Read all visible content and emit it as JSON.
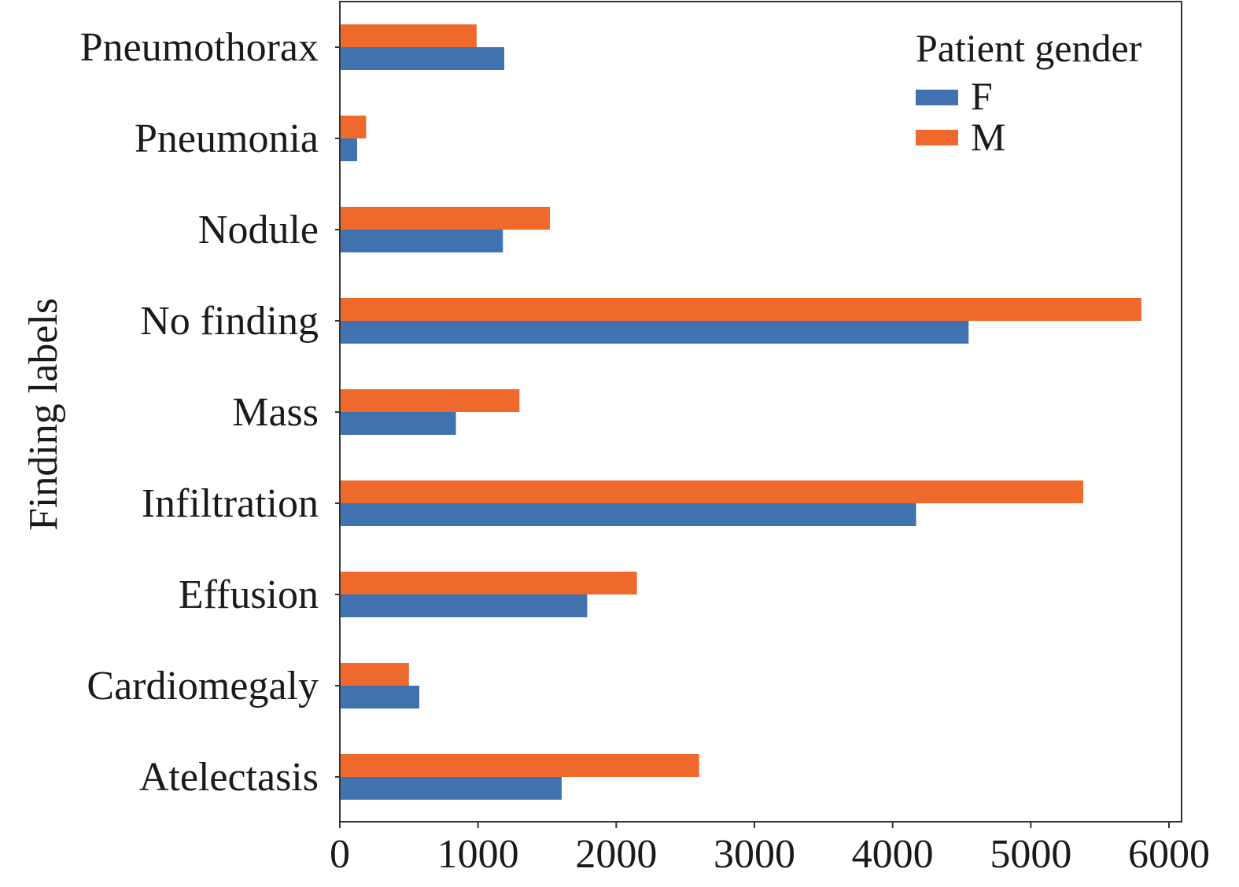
{
  "chart_data": {
    "type": "bar",
    "orientation": "horizontal",
    "categories": [
      "Pneumothorax",
      "Pneumonia",
      "Nodule",
      "No finding",
      "Mass",
      "Infiltration",
      "Effusion",
      "Cardiomegaly",
      "Atelectasis"
    ],
    "series": [
      {
        "name": "F",
        "color": "#3f72ae",
        "values": [
          1190,
          125,
          1180,
          4550,
          840,
          4170,
          1790,
          575,
          1605
        ]
      },
      {
        "name": "M",
        "color": "#f0692c",
        "values": [
          990,
          190,
          1520,
          5800,
          1300,
          5380,
          2150,
          500,
          2600
        ]
      }
    ],
    "ylabel": "Finding labels",
    "xlabel": "",
    "xlim": [
      0,
      6100
    ],
    "xticks": [
      0,
      1000,
      2000,
      3000,
      4000,
      5000,
      6000
    ],
    "xtick_labels": [
      "0",
      "1000",
      "2000",
      "3000",
      "4000",
      "5000",
      "6000"
    ],
    "legend": {
      "title": "Patient gender",
      "entries": [
        "F",
        "M"
      ],
      "placement": "top-right"
    },
    "grid": false
  }
}
